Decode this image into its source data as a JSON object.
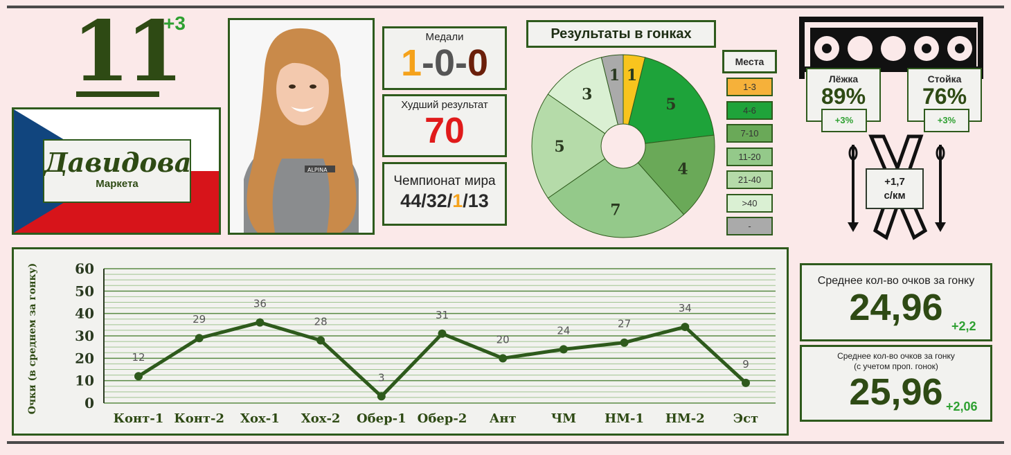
{
  "athlete": {
    "rank": "11",
    "rank_delta": "+3",
    "surname": "Давидова",
    "first_name": "Маркета",
    "photo_logo": "ALPINA"
  },
  "stats": {
    "medals_label": "Медали",
    "medals": [
      "1",
      "0",
      "0"
    ],
    "medal_sep": "-",
    "medal_colors": [
      "#f5a21b",
      "#555555",
      "#6b1f0a"
    ],
    "worst_label": "Худший результат",
    "worst_value": "70",
    "wc_label": "Чемпионат мира",
    "wc_parts": [
      "44/32/",
      "1",
      "/13"
    ]
  },
  "pie": {
    "title": "Результаты в гонках",
    "legend_title": "Места",
    "legend": [
      {
        "label": "1-3",
        "color": "#f6b13a"
      },
      {
        "label": "4-6",
        "color": "#1fa33a"
      },
      {
        "label": "7-10",
        "color": "#6aa958"
      },
      {
        "label": "11-20",
        "color": "#94c98a"
      },
      {
        "label": "21-40",
        "color": "#b5dba9"
      },
      {
        "label": ">40",
        "color": "#daf0d3"
      },
      {
        "label": "-",
        "color": "#aaaaaa"
      }
    ],
    "slices": [
      {
        "value": 1,
        "label": "1",
        "color": "#f8c41e"
      },
      {
        "value": 5,
        "label": "5",
        "color": "#1ea33a"
      },
      {
        "value": 4,
        "label": "4",
        "color": "#6aa958"
      },
      {
        "value": 7,
        "label": "7",
        "color": "#94c98a"
      },
      {
        "value": 5,
        "label": "5",
        "color": "#b5dba9"
      },
      {
        "value": 3,
        "label": "3",
        "color": "#daf0d3"
      },
      {
        "value": 1,
        "label": "1",
        "color": "#aaaaaa"
      }
    ]
  },
  "shooting": {
    "prone_label": "Лёжка",
    "prone_pct": "89%",
    "prone_delta": "+3%",
    "standing_label": "Стойка",
    "standing_pct": "76%",
    "standing_delta": "+3%",
    "speed_value": "+1,7",
    "speed_unit": "с/км"
  },
  "averages": {
    "avg_label": "Среднее кол-во очков за гонку",
    "avg_value": "24,96",
    "avg_delta": "+2,2",
    "avg2_label_line1": "Среднее кол-во очков за гонку",
    "avg2_label_line2": "(с учетом проп. гонок)",
    "avg2_value": "25,96",
    "avg2_delta": "+2,06"
  },
  "chart_data": {
    "type": "line",
    "ylabel": "Очки (в среднем за гонку)",
    "xlabel": "",
    "ylim": [
      0,
      60
    ],
    "yticks": [
      0,
      10,
      20,
      30,
      40,
      50,
      60
    ],
    "categories": [
      "Конт-1",
      "Конт-2",
      "Хох-1",
      "Хох-2",
      "Обер-1",
      "Обер-2",
      "Ант",
      "ЧМ",
      "НМ-1",
      "НМ-2",
      "Эст"
    ],
    "values": [
      12,
      29,
      36,
      28,
      3,
      31,
      20,
      24,
      27,
      34,
      9
    ],
    "line_color": "#2e5a1c",
    "grid": true
  }
}
